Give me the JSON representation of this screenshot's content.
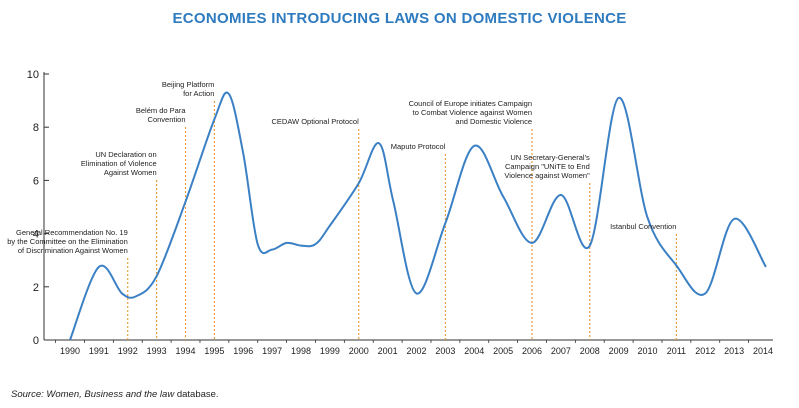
{
  "chart_data": {
    "type": "line",
    "title": "ECONOMIES INTRODUCING LAWS ON DOMESTIC VIOLENCE",
    "xlabel": "",
    "ylabel": "",
    "ylim": [
      0,
      10
    ],
    "yticks": [
      0,
      2,
      4,
      6,
      8,
      10
    ],
    "xticks": [
      "1990",
      "1991",
      "1992",
      "1993",
      "1994",
      "1995",
      "1996",
      "1997",
      "1998",
      "1999",
      "2000",
      "2001",
      "2002",
      "2003",
      "2004",
      "2005",
      "2006",
      "2007",
      "2008",
      "2009",
      "2010",
      "2011",
      "2012",
      "2013",
      "2014"
    ],
    "line_color": "#3b80c4",
    "marker_color": "#e8962a",
    "series": [
      {
        "name": "Economies introducing laws",
        "points": [
          {
            "x": 1990.0,
            "y": 0
          },
          {
            "x": 1991.0,
            "y": 2.75
          },
          {
            "x": 1991.8,
            "y": 1.75
          },
          {
            "x": 1992.3,
            "y": 1.65
          },
          {
            "x": 1993.0,
            "y": 2.4
          },
          {
            "x": 1994.0,
            "y": 5.2
          },
          {
            "x": 1995.0,
            "y": 8.3
          },
          {
            "x": 1995.5,
            "y": 9.25
          },
          {
            "x": 1996.0,
            "y": 7.0
          },
          {
            "x": 1996.5,
            "y": 3.6
          },
          {
            "x": 1997.0,
            "y": 3.4
          },
          {
            "x": 1997.5,
            "y": 3.65
          },
          {
            "x": 1998.0,
            "y": 3.55
          },
          {
            "x": 1998.5,
            "y": 3.6
          },
          {
            "x": 1999.0,
            "y": 4.3
          },
          {
            "x": 2000.0,
            "y": 5.9
          },
          {
            "x": 2000.7,
            "y": 7.4
          },
          {
            "x": 2001.2,
            "y": 5.2
          },
          {
            "x": 2002.0,
            "y": 1.75
          },
          {
            "x": 2003.0,
            "y": 4.4
          },
          {
            "x": 2004.0,
            "y": 7.3
          },
          {
            "x": 2005.0,
            "y": 5.4
          },
          {
            "x": 2006.0,
            "y": 3.65
          },
          {
            "x": 2007.0,
            "y": 5.45
          },
          {
            "x": 2008.0,
            "y": 3.55
          },
          {
            "x": 2009.0,
            "y": 9.1
          },
          {
            "x": 2010.0,
            "y": 4.6
          },
          {
            "x": 2011.0,
            "y": 2.8
          },
          {
            "x": 2012.0,
            "y": 1.75
          },
          {
            "x": 2013.0,
            "y": 4.55
          },
          {
            "x": 2014.1,
            "y": 2.75
          }
        ]
      }
    ],
    "annotations": [
      {
        "x": 1992,
        "lines": [
          "General Recommendation No. 19",
          "by the Committee on the Elimination",
          "of Discrimination Against Women"
        ]
      },
      {
        "x": 1993,
        "lines": [
          "UN Declaration on",
          "Elimination of Violence",
          "Against Women"
        ]
      },
      {
        "x": 1994,
        "lines": [
          "Belém do Para",
          "Convention"
        ]
      },
      {
        "x": 1995,
        "lines": [
          "Beijing Platform",
          "for Action"
        ]
      },
      {
        "x": 2000,
        "lines": [
          "CEDAW Optional Protocol"
        ]
      },
      {
        "x": 2003,
        "lines": [
          "Maputo Protocol"
        ]
      },
      {
        "x": 2006,
        "lines": [
          "Council of Europe initiates Campaign",
          "to Combat Violence against Women",
          "and Domestic Violence"
        ]
      },
      {
        "x": 2008,
        "lines": [
          "UN Secretary-General's",
          "Campaign \"UNiTE to End",
          "Violence against Women\""
        ]
      },
      {
        "x": 2011,
        "lines": [
          "Istanbul Convention"
        ]
      }
    ]
  },
  "source": {
    "label": "Source:",
    "text": "Women, Business and the law",
    "suffix": " database."
  }
}
